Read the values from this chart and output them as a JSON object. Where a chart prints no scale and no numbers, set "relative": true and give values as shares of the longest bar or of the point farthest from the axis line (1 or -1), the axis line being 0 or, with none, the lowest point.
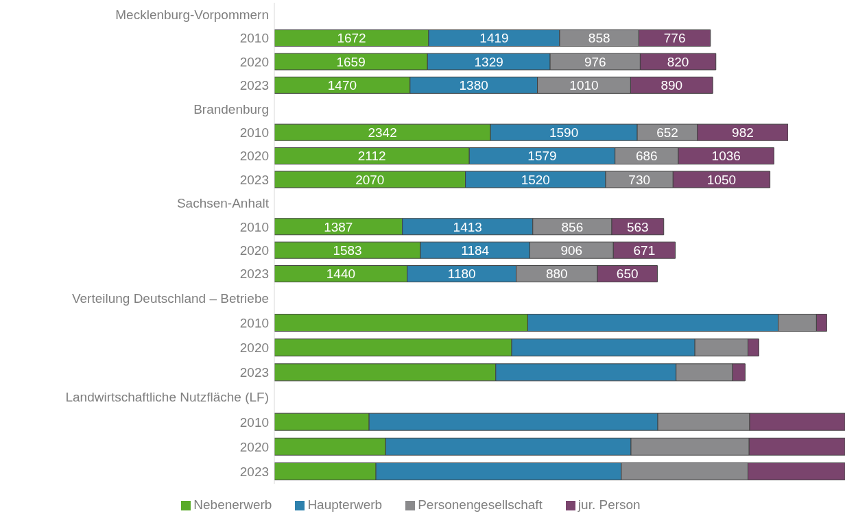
{
  "chart_data": [
    {
      "type": "bar",
      "orientation": "horizontal",
      "stacked": true,
      "categories": [
        "Mecklenburg-Vorpommern",
        "2010",
        "2020",
        "2023",
        "Brandenburg",
        "2010",
        "2020",
        "2023",
        "Sachsen-Anhalt",
        "2010",
        "2020",
        "2023"
      ],
      "series": [
        {
          "color": "#5aab2a",
          "values": [
            null,
            1672,
            1659,
            1470,
            null,
            2342,
            2112,
            2070,
            null,
            1387,
            1583,
            1440
          ],
          "value_labels": [
            null,
            "1672",
            "1659",
            "1470",
            null,
            "2342",
            "2112",
            "2070",
            null,
            "1387",
            "1583",
            "1440"
          ]
        },
        {
          "color": "#2e81ad",
          "values": [
            null,
            1419,
            1329,
            1380,
            null,
            1590,
            1579,
            1520,
            null,
            1413,
            1184,
            1180
          ],
          "value_labels": [
            null,
            "1419",
            "1329",
            "1380",
            null,
            "1590",
            "1579",
            "1520",
            null,
            "1413",
            "1184",
            "1180"
          ]
        },
        {
          "color": "#8a8a8c",
          "values": [
            null,
            858,
            976,
            1010,
            null,
            652,
            686,
            730,
            null,
            856,
            906,
            880
          ],
          "value_labels": [
            null,
            "858",
            "976",
            "1010",
            null,
            "652",
            "686",
            "730",
            null,
            "856",
            "906",
            "880"
          ]
        },
        {
          "color": "#7a446d",
          "values": [
            null,
            776,
            820,
            890,
            null,
            982,
            1036,
            1050,
            null,
            563,
            671,
            650
          ],
          "value_labels": [
            null,
            "776",
            "820",
            "890",
            null,
            "982",
            "1036",
            "1050",
            null,
            "563",
            "671",
            "650"
          ]
        }
      ]
    },
    {
      "type": "bar",
      "orientation": "horizontal",
      "stacked": true,
      "relative": true,
      "legend": "bottom",
      "categories": [
        "Verteilung Deutschland – Betriebe",
        "2010",
        "2020",
        "2023",
        "Landwirtschaftliche Nutzfläche (LF)",
        "2010",
        "2020",
        "2023"
      ],
      "series": [
        {
          "name": "Nebenerwerb",
          "color": "#5aab2a",
          "values": [
            null,
            0.444,
            0.416,
            0.388,
            null,
            0.166,
            0.195,
            0.178
          ]
        },
        {
          "name": "Haupterwerb",
          "color": "#2e81ad",
          "values": [
            null,
            0.439,
            0.321,
            0.316,
            null,
            0.506,
            0.43,
            0.43
          ]
        },
        {
          "name": "Personengesellschaft",
          "color": "#8a8a8c",
          "values": [
            null,
            0.067,
            0.093,
            0.099,
            null,
            0.161,
            0.207,
            0.222
          ]
        },
        {
          "name": "jur. Person",
          "color": "#7a446d",
          "values": [
            null,
            0.018,
            0.019,
            0.022,
            null,
            0.167,
            0.168,
            0.17
          ]
        }
      ]
    }
  ]
}
